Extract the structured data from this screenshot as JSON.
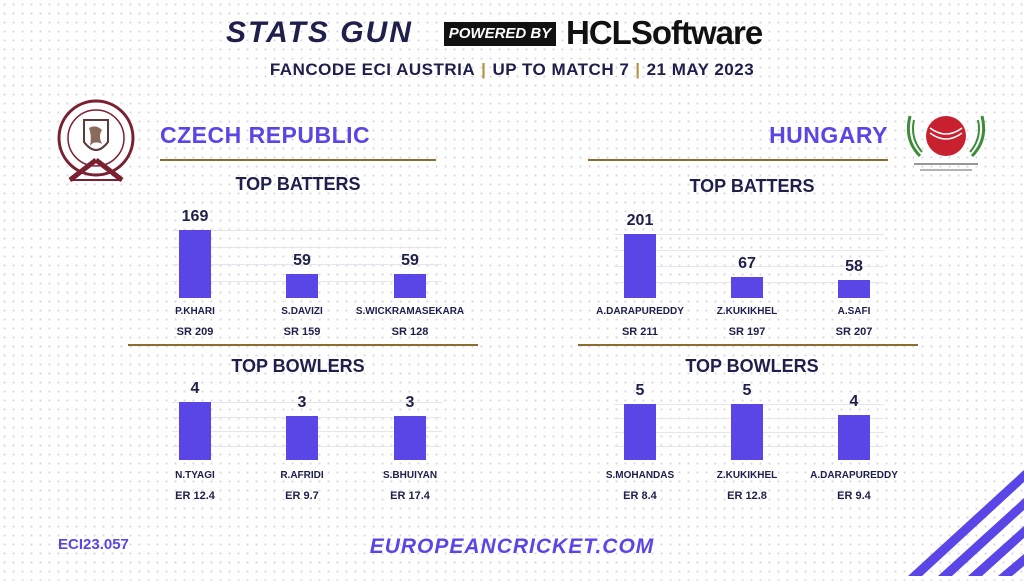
{
  "header": {
    "stats_gun": "STATS GUN",
    "powered_by": "POWERED BY",
    "sponsor": "HCLSoftware",
    "subtitle_parts": [
      "FANCODE ECI AUSTRIA",
      "UP TO MATCH 7",
      "21 MAY 2023"
    ],
    "separator": "|"
  },
  "footer": {
    "code": "ECI23.057",
    "url": "EUROPEANCRICKET.COM"
  },
  "colors": {
    "accent": "#5a46e6",
    "gold": "#8a6d2f",
    "navy": "#1e1f4a",
    "hungary_red": "#c8202f",
    "hungary_green": "#3c8c3a"
  },
  "teams": [
    {
      "name": "CZECH REPUBLIC",
      "logo_icon": "czech-cricket-crest-icon"
    },
    {
      "name": "HUNGARY",
      "logo_icon": "hungary-cricket-ball-icon"
    }
  ],
  "chart_data": [
    {
      "type": "bar",
      "team": "CZECH REPUBLIC",
      "title": "TOP BATTERS",
      "categories": [
        "P.KHARI",
        "S.DAVIZI",
        "S.WICKRAMASEKARA"
      ],
      "values": [
        169,
        59,
        59
      ],
      "stats": [
        "SR 209",
        "SR 159",
        "SR 128"
      ]
    },
    {
      "type": "bar",
      "team": "CZECH REPUBLIC",
      "title": "TOP BOWLERS",
      "categories": [
        "N.TYAGI",
        "R.AFRIDI",
        "S.BHUIYAN"
      ],
      "values": [
        4,
        3,
        3
      ],
      "stats": [
        "ER 12.4",
        "ER 9.7",
        "ER 17.4"
      ]
    },
    {
      "type": "bar",
      "team": "HUNGARY",
      "title": "TOP BATTERS",
      "categories": [
        "A.DARAPUREDDY",
        "Z.KUKIKHEL",
        "A.SAFI"
      ],
      "values": [
        201,
        67,
        58
      ],
      "stats": [
        "SR 211",
        "SR 197",
        "SR 207"
      ]
    },
    {
      "type": "bar",
      "team": "HUNGARY",
      "title": "TOP BOWLERS",
      "categories": [
        "S.MOHANDAS",
        "Z.KUKIKHEL",
        "A.DARAPUREDDY"
      ],
      "values": [
        5,
        5,
        4
      ],
      "stats": [
        "ER 8.4",
        "ER 12.8",
        "ER 9.4"
      ]
    }
  ]
}
